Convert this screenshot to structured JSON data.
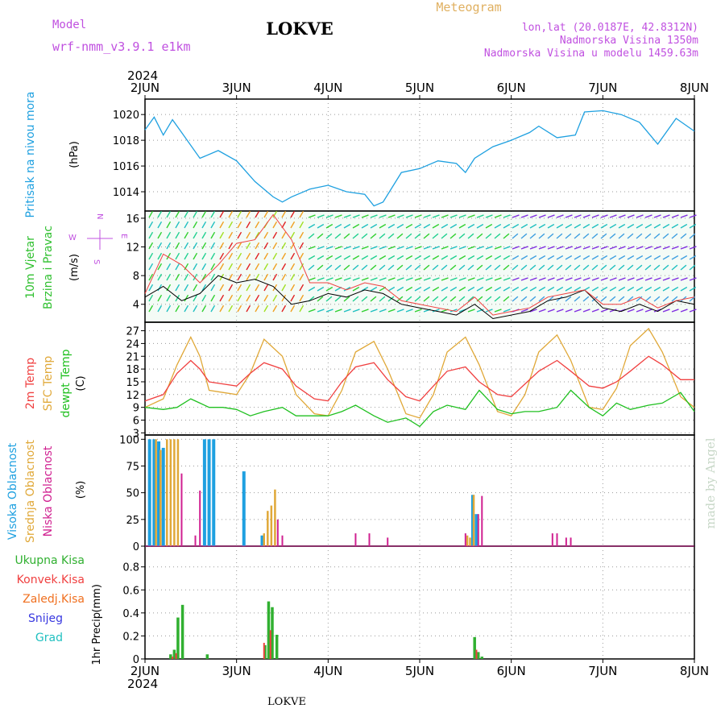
{
  "header": {
    "station": "LOKVE",
    "model_label": "Model",
    "model_value": "wrf-nmm_v3.9.1  e1km",
    "product": "Meteogram",
    "coords": "lon,lat (20.0187E, 42.8312N)",
    "elevation": "Nadmorska Visina 1350m",
    "model_elevation": "Nadmorska Visina u modelu 1459.63m",
    "footer_station": "LOKVE",
    "credit": "made by Angel"
  },
  "colors": {
    "pressure": "#1ea0e0",
    "temp_2m": "#f04040",
    "temp_sfc": "#e0a838",
    "dewpt": "#20c020",
    "high_cloud": "#1ea0e0",
    "mid_cloud": "#e0a838",
    "low_cloud": "#d02090",
    "total_precip": "#30b030",
    "conv_precip": "#f04040",
    "freezing": "#f07020",
    "snow": "#3838e0",
    "hail": "#20c0c0",
    "wind_label": "#30c030",
    "axis_purple": "#c050e0"
  },
  "chart_data": [
    {
      "type": "line",
      "panel": "pressure",
      "ylabel": "Pritisak na nivou mora",
      "unit": "(hPa)",
      "ylim": [
        1012.5,
        1021.2
      ],
      "yticks": [
        1014,
        1016,
        1018,
        1020
      ],
      "x": [
        2.0,
        2.1,
        2.2,
        2.3,
        2.4,
        2.6,
        2.8,
        3.0,
        3.2,
        3.4,
        3.5,
        3.6,
        3.8,
        4.0,
        4.2,
        4.4,
        4.5,
        4.6,
        4.8,
        5.0,
        5.2,
        5.4,
        5.5,
        5.6,
        5.8,
        6.0,
        6.2,
        6.3,
        6.5,
        6.7,
        6.8,
        7.0,
        7.2,
        7.4,
        7.6,
        7.8,
        8.0
      ],
      "series": [
        {
          "values": [
            1018.8,
            1019.8,
            1018.4,
            1019.6,
            1018.6,
            1016.6,
            1017.2,
            1016.4,
            1014.8,
            1013.6,
            1013.2,
            1013.6,
            1014.2,
            1014.5,
            1014.0,
            1013.8,
            1012.9,
            1013.2,
            1015.5,
            1015.8,
            1016.4,
            1016.2,
            1015.5,
            1016.6,
            1017.5,
            1018.0,
            1018.6,
            1019.1,
            1018.2,
            1018.4,
            1020.2,
            1020.3,
            1020.0,
            1019.4,
            1017.7,
            1019.7,
            1018.7
          ]
        }
      ]
    },
    {
      "type": "line",
      "panel": "wind",
      "ylabel": "10m Vjetar",
      "ylabel2": "Brzina i Pravac",
      "unit": "(m/s)",
      "compass": {
        "n": "N",
        "s": "S",
        "e": "E",
        "w": "W"
      },
      "ylim": [
        1.5,
        17
      ],
      "yticks": [
        4,
        8,
        12,
        16
      ],
      "x": [
        2.0,
        2.2,
        2.4,
        2.6,
        2.8,
        3.0,
        3.2,
        3.4,
        3.6,
        3.8,
        4.0,
        4.2,
        4.4,
        4.6,
        4.8,
        5.0,
        5.2,
        5.4,
        5.6,
        5.8,
        6.0,
        6.2,
        6.4,
        6.6,
        6.8,
        7.0,
        7.2,
        7.4,
        7.6,
        7.8,
        8.0
      ],
      "series": [
        {
          "name": "",
          "values": [
            5.0,
            6.5,
            4.5,
            5.5,
            8.0,
            7.0,
            7.5,
            6.5,
            4.0,
            4.5,
            5.5,
            5.0,
            6.0,
            5.5,
            4.0,
            3.5,
            3.0,
            2.5,
            4.0,
            2.0,
            2.5,
            3.0,
            4.5,
            5.0,
            6.0,
            3.5,
            3.0,
            4.0,
            3.0,
            4.5,
            4.0
          ]
        },
        {
          "name": "",
          "values": [
            5.5,
            11.0,
            9.5,
            7.0,
            9.5,
            12.5,
            13.0,
            16.5,
            13.0,
            7.0,
            7.0,
            6.0,
            7.0,
            6.5,
            4.5,
            4.0,
            3.5,
            3.0,
            5.0,
            2.5,
            3.0,
            3.5,
            5.0,
            5.5,
            6.0,
            4.0,
            4.0,
            5.0,
            3.5,
            4.5,
            5.0
          ]
        }
      ]
    },
    {
      "type": "line",
      "panel": "temperature",
      "ylabel": "2m Temp",
      "ylabel2": "SFC Temp",
      "ylabel3": "dewpt Temp",
      "unit": "(C)",
      "ylim": [
        2.5,
        29
      ],
      "yticks": [
        3,
        6,
        9,
        12,
        15,
        18,
        21,
        24,
        27
      ],
      "x": [
        2.0,
        2.2,
        2.35,
        2.5,
        2.6,
        2.7,
        2.85,
        3.0,
        3.15,
        3.3,
        3.5,
        3.65,
        3.85,
        4.0,
        4.15,
        4.3,
        4.5,
        4.65,
        4.85,
        5.0,
        5.15,
        5.3,
        5.5,
        5.65,
        5.85,
        6.0,
        6.15,
        6.3,
        6.5,
        6.65,
        6.85,
        7.0,
        7.15,
        7.3,
        7.5,
        7.65,
        7.85,
        8.0
      ],
      "series": [
        {
          "name": "2m",
          "values": [
            10.5,
            12.0,
            17.0,
            20.0,
            18.0,
            15.0,
            14.5,
            14.0,
            17.0,
            19.5,
            18.0,
            14.0,
            11.0,
            10.5,
            15.0,
            18.5,
            19.5,
            15.5,
            11.5,
            10.5,
            14.0,
            17.5,
            18.5,
            15.0,
            12.0,
            11.5,
            14.5,
            17.5,
            20.0,
            17.5,
            14.0,
            13.5,
            15.0,
            17.5,
            21.0,
            19.0,
            15.5,
            15.5
          ]
        },
        {
          "name": "sfc",
          "values": [
            9.0,
            11.0,
            19.0,
            25.5,
            21.0,
            13.0,
            12.5,
            12.0,
            17.0,
            25.0,
            21.0,
            12.0,
            7.5,
            7.0,
            13.0,
            22.0,
            24.5,
            18.0,
            7.5,
            6.5,
            12.0,
            22.0,
            25.5,
            19.0,
            8.0,
            7.0,
            12.0,
            22.0,
            26.0,
            20.0,
            9.0,
            8.5,
            13.5,
            23.5,
            27.5,
            22.0,
            11.5,
            9.0
          ]
        },
        {
          "name": "dewpt",
          "values": [
            9.0,
            8.5,
            9.0,
            11.0,
            10.0,
            9.0,
            9.0,
            8.5,
            7.0,
            8.0,
            9.0,
            7.0,
            7.0,
            7.0,
            8.0,
            9.5,
            7.0,
            5.5,
            6.5,
            4.5,
            8.0,
            9.5,
            8.5,
            13.0,
            8.5,
            7.5,
            8.0,
            8.0,
            9.0,
            13.0,
            9.0,
            7.0,
            10.0,
            8.5,
            9.5,
            10.0,
            12.5,
            8.0
          ]
        }
      ]
    },
    {
      "type": "bar",
      "panel": "clouds",
      "ylabel": "Visoka Oblacnost",
      "ylabel2": "Srednja Oblacnost",
      "ylabel3": "Niska Oblacnost",
      "unit": "(%)",
      "ylim": [
        0,
        104
      ],
      "yticks": [
        0,
        25,
        50,
        75,
        100
      ],
      "series": [
        {
          "name": "high",
          "x": [
            2.05,
            2.1,
            2.15,
            2.2,
            2.65,
            2.7,
            2.75,
            3.08,
            3.28,
            5.58,
            5.62
          ],
          "values": [
            100,
            100,
            98,
            92,
            100,
            100,
            100,
            70,
            10,
            48,
            30
          ]
        },
        {
          "name": "mid",
          "x": [
            2.12,
            2.17,
            2.24,
            2.28,
            2.32,
            2.36,
            3.3,
            3.34,
            3.38,
            3.42,
            5.52,
            5.55,
            5.59
          ],
          "values": [
            100,
            90,
            100,
            100,
            100,
            100,
            12,
            33,
            38,
            53,
            10,
            8,
            48
          ]
        },
        {
          "name": "low",
          "x": [
            2.4,
            2.55,
            2.6,
            3.45,
            3.5,
            4.3,
            4.45,
            4.65,
            5.5,
            5.64,
            5.68,
            6.45,
            6.5,
            6.6,
            6.65
          ],
          "values": [
            68,
            10,
            52,
            25,
            10,
            12,
            12,
            8,
            12,
            30,
            47,
            12,
            12,
            8,
            8
          ]
        }
      ]
    },
    {
      "type": "bar",
      "panel": "precip",
      "ylabel": "1hr Precip",
      "unit": "(mm)",
      "ylim": [
        0,
        0.98
      ],
      "yticks": [
        0,
        0.2,
        0.4,
        0.6,
        0.8
      ],
      "legend": [
        "Ukupna Kisa",
        "Konvek.Kisa",
        "Zaledj.Kisa",
        "Snijeg",
        "Grad"
      ],
      "series": [
        {
          "name": "total",
          "x": [
            2.28,
            2.32,
            2.36,
            2.41,
            2.68,
            3.31,
            3.35,
            3.39,
            3.44,
            5.6,
            5.64,
            5.68
          ],
          "values": [
            0.04,
            0.08,
            0.36,
            0.47,
            0.04,
            0.12,
            0.5,
            0.45,
            0.21,
            0.19,
            0.06,
            0.02
          ]
        },
        {
          "name": "conv",
          "x": [
            2.3,
            2.34,
            3.3,
            3.37,
            5.62
          ],
          "values": [
            0.02,
            0.05,
            0.14,
            0.25,
            0.08
          ]
        }
      ],
      "xticks": [
        "2JUN",
        "3JUN",
        "4JUN",
        "5JUN",
        "6JUN",
        "7JUN",
        "8JUN"
      ],
      "year": "2024"
    }
  ]
}
